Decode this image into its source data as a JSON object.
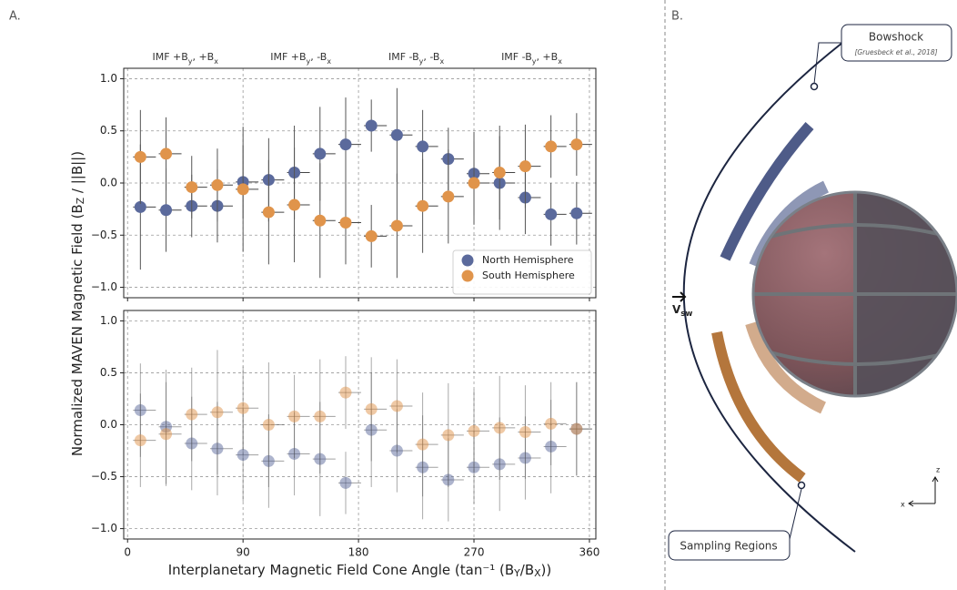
{
  "panel_labels": [
    "A.",
    "B."
  ],
  "chart_data": [
    {
      "type": "scatter",
      "ylabel": "Normalized MAVEN Magnetic Field (BZ / ||B||)",
      "xlim": [
        -3,
        365
      ],
      "ylim": [
        -1.1,
        1.1
      ],
      "xticks": [
        0,
        90,
        180,
        270,
        360
      ],
      "xtick_labels": false,
      "yticks": [
        {
          "value": -1,
          "label": "−1.0"
        },
        {
          "value": -0.5,
          "label": "−0.5"
        },
        {
          "value": 0,
          "label": "0.0"
        },
        0.5,
        {
          "value": 1,
          "label": "1.0"
        }
      ],
      "grid": true,
      "legend": "lower right",
      "alpha": 1,
      "sectors": [
        "IMF +By, +Bx",
        "IMF +By, -Bx",
        "IMF -By, -Bx",
        "IMF -By, +Bx"
      ],
      "x": [
        10,
        30,
        50,
        70,
        90,
        110,
        130,
        150,
        170,
        190,
        210,
        230,
        250,
        270,
        290,
        310,
        330,
        350
      ],
      "series": [
        {
          "name": "North Hemisphere",
          "color": "#5b6a9c",
          "values": [
            -0.23,
            -0.26,
            -0.22,
            -0.22,
            0.01,
            0.03,
            0.1,
            0.28,
            0.37,
            0.55,
            0.46,
            0.35,
            0.23,
            0.09,
            0.0,
            -0.14,
            -0.3,
            -0.29
          ],
          "errors": [
            0.6,
            0.4,
            0.3,
            0.35,
            0.35,
            0.4,
            0.45,
            0.45,
            0.45,
            0.25,
            0.45,
            0.35,
            0.3,
            0.4,
            0.45,
            0.35,
            0.3,
            0.3
          ]
        },
        {
          "name": "South Hemisphere",
          "color": "#e0944b",
          "values": [
            0.25,
            0.28,
            -0.04,
            -0.02,
            -0.06,
            -0.28,
            -0.21,
            -0.36,
            -0.38,
            -0.51,
            -0.41,
            -0.22,
            -0.13,
            0.0,
            0.1,
            0.16,
            0.35,
            0.37
          ],
          "errors": [
            0.45,
            0.35,
            0.3,
            0.35,
            0.6,
            0.5,
            0.55,
            0.55,
            0.4,
            0.3,
            0.5,
            0.45,
            0.45,
            0.4,
            0.45,
            0.4,
            0.3,
            0.3
          ]
        }
      ]
    },
    {
      "type": "scatter",
      "xlabel": "Interplanetary Magnetic Field Cone Angle (tan⁻¹ (BY/BX))",
      "xlim": [
        -3,
        365
      ],
      "ylim": [
        -1.1,
        1.1
      ],
      "xticks": [
        0,
        90,
        180,
        270,
        360
      ],
      "xtick_labels": true,
      "yticks": [
        {
          "value": -1,
          "label": "−1.0"
        },
        {
          "value": -0.5,
          "label": "−0.5"
        },
        {
          "value": 0,
          "label": "0.0"
        },
        0.5,
        {
          "value": 1,
          "label": "1.0"
        }
      ],
      "grid": true,
      "alpha": 0.5,
      "x": [
        10,
        30,
        50,
        70,
        90,
        110,
        130,
        150,
        170,
        190,
        210,
        230,
        250,
        270,
        290,
        310,
        330,
        350
      ],
      "series": [
        {
          "color": "#5b6a9c",
          "values": [
            0.14,
            -0.02,
            -0.18,
            -0.23,
            -0.29,
            -0.35,
            -0.28,
            -0.33,
            -0.56,
            -0.05,
            -0.25,
            -0.41,
            -0.53,
            -0.41,
            -0.38,
            -0.32,
            -0.21,
            -0.04
          ],
          "errors": [
            0.45,
            0.55,
            0.45,
            0.45,
            0.45,
            0.45,
            0.4,
            0.55,
            0.3,
            0.55,
            0.4,
            0.5,
            0.4,
            0.35,
            0.45,
            0.4,
            0.45,
            0.45
          ]
        },
        {
          "color": "#e0944b",
          "values": [
            -0.15,
            -0.09,
            0.1,
            0.12,
            0.16,
            0.0,
            0.08,
            0.08,
            0.31,
            0.15,
            0.18,
            -0.19,
            -0.1,
            -0.06,
            -0.03,
            -0.07,
            0.01,
            -0.04
          ],
          "errors": [
            0.45,
            0.5,
            0.45,
            0.6,
            0.4,
            0.6,
            0.4,
            0.55,
            0.35,
            0.5,
            0.45,
            0.5,
            0.5,
            0.4,
            0.5,
            0.45,
            0.4,
            0.45
          ]
        }
      ]
    }
  ],
  "diagram": {
    "bowshock_label": "Bowshock",
    "citation": "[Gruesbeck et al., 2018]",
    "velocity_label": "Vsw",
    "sampling_label": "Sampling Regions",
    "axis_z": "z",
    "axis_x": "x"
  }
}
